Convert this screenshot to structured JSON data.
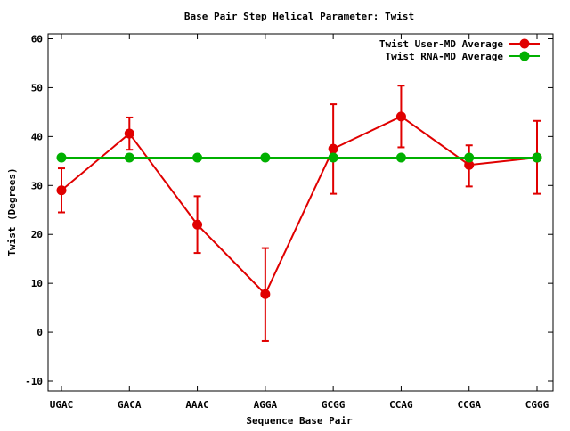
{
  "chart_data": {
    "type": "line",
    "title": "Base Pair Step Helical Parameter: Twist",
    "xlabel": "Sequence Base Pair",
    "ylabel": "Twist (Degrees)",
    "categories": [
      "UGAC",
      "GACA",
      "AAAC",
      "AGGA",
      "GCGG",
      "CCAG",
      "CCGA",
      "CGGG"
    ],
    "ylim": [
      -12,
      61
    ],
    "yticks": [
      -10,
      0,
      10,
      20,
      30,
      40,
      50,
      60
    ],
    "grid": false,
    "legend_position": "top-right",
    "series": [
      {
        "name": "Twist User-MD Average",
        "color": "#e00000",
        "marker": "circle",
        "values": [
          29.0,
          40.6,
          22.0,
          7.8,
          37.5,
          44.1,
          34.2,
          35.7
        ],
        "error_low": [
          24.5,
          37.3,
          16.2,
          -1.8,
          28.3,
          37.8,
          29.8,
          28.3
        ],
        "error_high": [
          33.5,
          43.9,
          27.8,
          17.2,
          46.6,
          50.4,
          38.2,
          43.2
        ]
      },
      {
        "name": "Twist RNA-MD Average",
        "color": "#00b000",
        "marker": "circle",
        "values": [
          35.7,
          35.7,
          35.7,
          35.7,
          35.7,
          35.7,
          35.7,
          35.7
        ]
      }
    ]
  }
}
